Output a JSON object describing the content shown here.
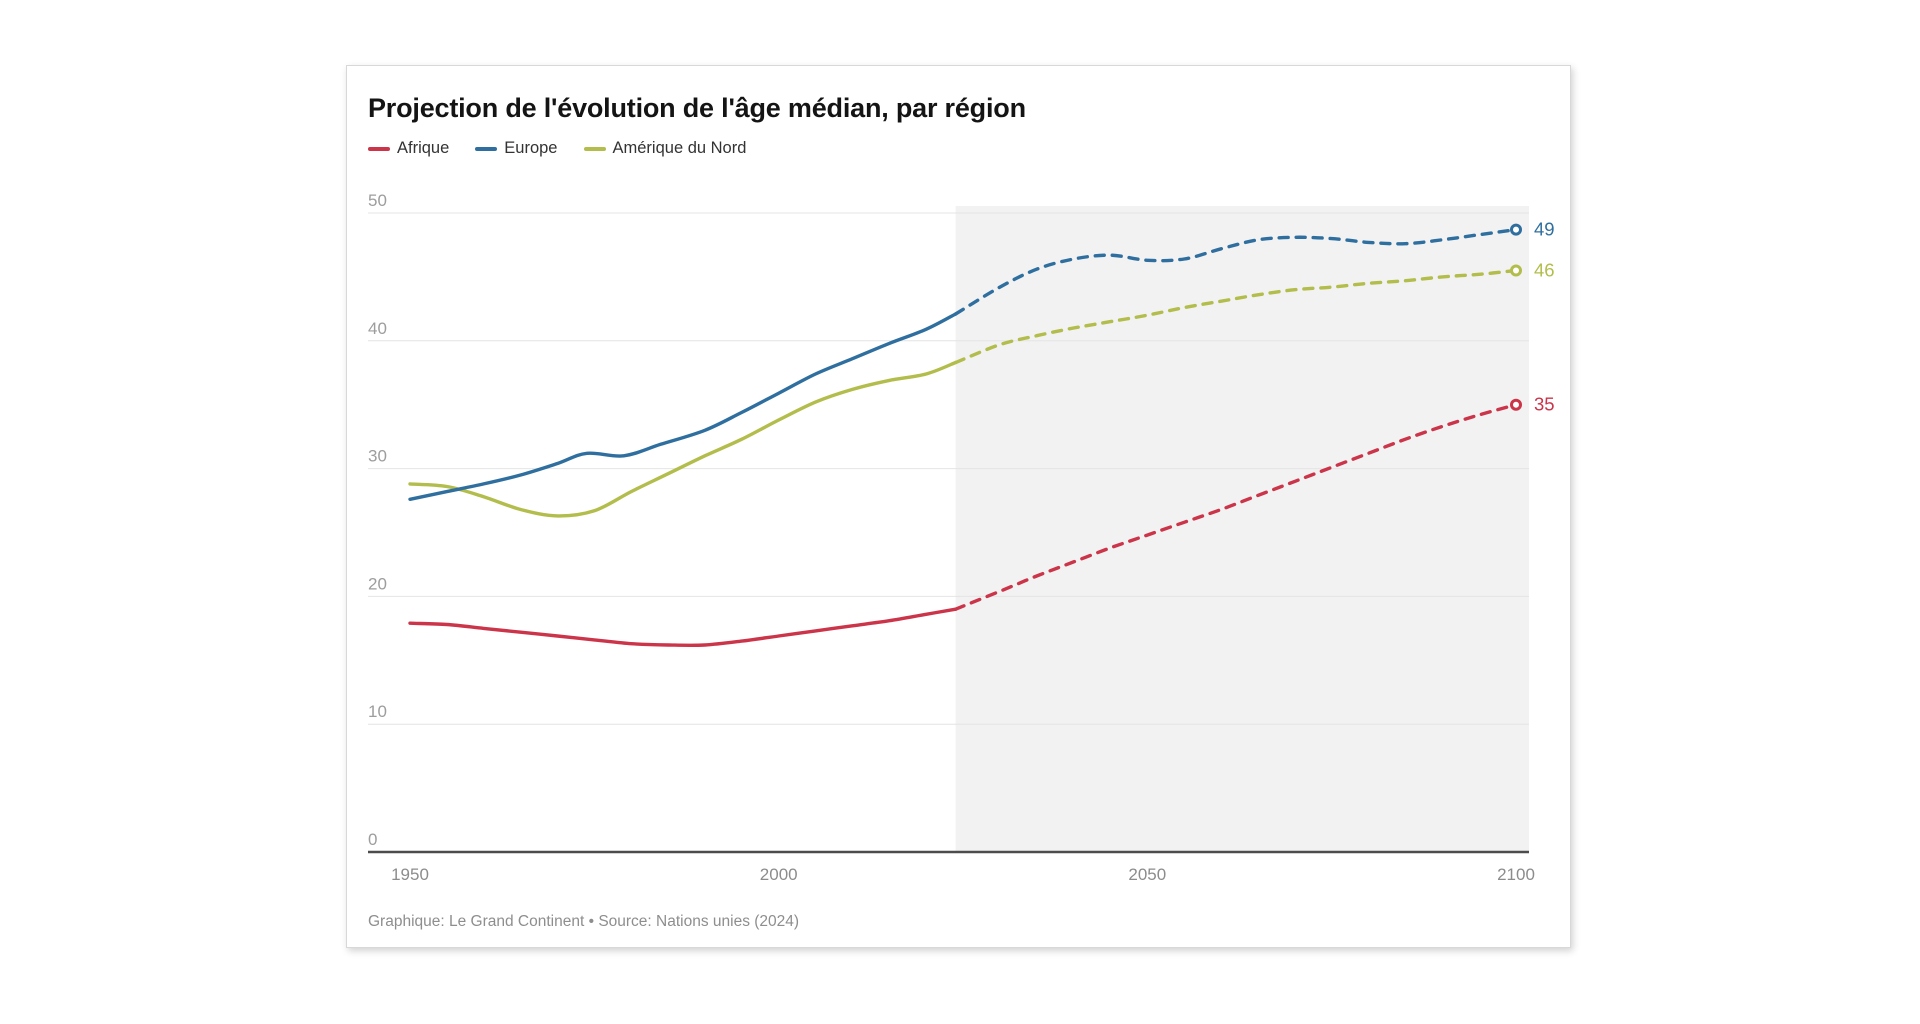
{
  "card": {
    "title": "Projection de l'évolution de l'âge médian, par région",
    "footer": "Graphique: Le Grand Continent • Source: Nations unies (2024)"
  },
  "legend": {
    "items": [
      {
        "label": "Afrique",
        "color": "#cb3449"
      },
      {
        "label": "Europe",
        "color": "#2f6f9f"
      },
      {
        "label": "Amérique du Nord",
        "color": "#b2bd4b"
      }
    ]
  },
  "chart_data": {
    "type": "line",
    "title": "Projection de l'évolution de l'âge médian, par région",
    "xlabel": "",
    "ylabel": "",
    "x_range": [
      1950,
      2100
    ],
    "y_range": [
      0,
      50
    ],
    "x_ticks": [
      1950,
      2000,
      2050,
      2100
    ],
    "y_ticks": [
      0,
      10,
      20,
      30,
      40,
      50
    ],
    "grid": true,
    "legend_position": "top",
    "projection_start": 2024,
    "projection_shade_color": "#f2f2f2",
    "grid_color": "#e4e4e4",
    "axis_color": "#4c4c4c",
    "series": [
      {
        "id": "afrique",
        "name": "Afrique",
        "color": "#cb3449",
        "end_label": "35",
        "historical": {
          "x": [
            1950,
            1955,
            1960,
            1965,
            1970,
            1975,
            1980,
            1985,
            1990,
            1995,
            2000,
            2005,
            2010,
            2015,
            2020,
            2024
          ],
          "y": [
            17.9,
            17.8,
            17.5,
            17.2,
            16.9,
            16.6,
            16.3,
            16.2,
            16.2,
            16.5,
            16.9,
            17.3,
            17.7,
            18.1,
            18.6,
            19.0
          ]
        },
        "projection": {
          "x": [
            2024,
            2030,
            2035,
            2040,
            2045,
            2050,
            2055,
            2060,
            2065,
            2070,
            2075,
            2080,
            2085,
            2090,
            2095,
            2100
          ],
          "y": [
            19.0,
            20.4,
            21.6,
            22.7,
            23.8,
            24.8,
            25.8,
            26.8,
            27.9,
            29.0,
            30.1,
            31.2,
            32.3,
            33.3,
            34.2,
            35.0
          ]
        }
      },
      {
        "id": "europe",
        "name": "Europe",
        "color": "#2f6f9f",
        "end_label": "49",
        "historical": {
          "x": [
            1950,
            1955,
            1960,
            1965,
            1970,
            1974,
            1979,
            1984,
            1990,
            1995,
            2000,
            2005,
            2010,
            2015,
            2020,
            2024
          ],
          "y": [
            27.6,
            28.2,
            28.8,
            29.5,
            30.4,
            31.2,
            31.0,
            31.9,
            33.0,
            34.4,
            35.9,
            37.4,
            38.6,
            39.8,
            40.9,
            42.1
          ]
        },
        "projection": {
          "x": [
            2024,
            2030,
            2035,
            2040,
            2045,
            2050,
            2055,
            2060,
            2065,
            2070,
            2075,
            2080,
            2085,
            2090,
            2095,
            2100
          ],
          "y": [
            42.1,
            44.2,
            45.6,
            46.4,
            46.7,
            46.3,
            46.4,
            47.2,
            47.9,
            48.1,
            48.0,
            47.7,
            47.6,
            47.9,
            48.3,
            48.7
          ]
        }
      },
      {
        "id": "amerique-du-nord",
        "name": "Amérique du Nord",
        "color": "#b2bd4b",
        "end_label": "46",
        "historical": {
          "x": [
            1950,
            1955,
            1960,
            1965,
            1970,
            1975,
            1980,
            1985,
            1990,
            1995,
            2000,
            2005,
            2010,
            2015,
            2020,
            2024
          ],
          "y": [
            28.8,
            28.6,
            27.8,
            26.8,
            26.3,
            26.7,
            28.2,
            29.6,
            31.0,
            32.3,
            33.8,
            35.2,
            36.2,
            36.9,
            37.4,
            38.3
          ]
        },
        "projection": {
          "x": [
            2024,
            2030,
            2035,
            2040,
            2045,
            2050,
            2055,
            2060,
            2065,
            2070,
            2075,
            2080,
            2085,
            2090,
            2095,
            2100
          ],
          "y": [
            38.3,
            39.7,
            40.4,
            41.0,
            41.5,
            42.0,
            42.6,
            43.1,
            43.6,
            44.0,
            44.2,
            44.5,
            44.7,
            45.0,
            45.2,
            45.5
          ]
        }
      }
    ]
  }
}
